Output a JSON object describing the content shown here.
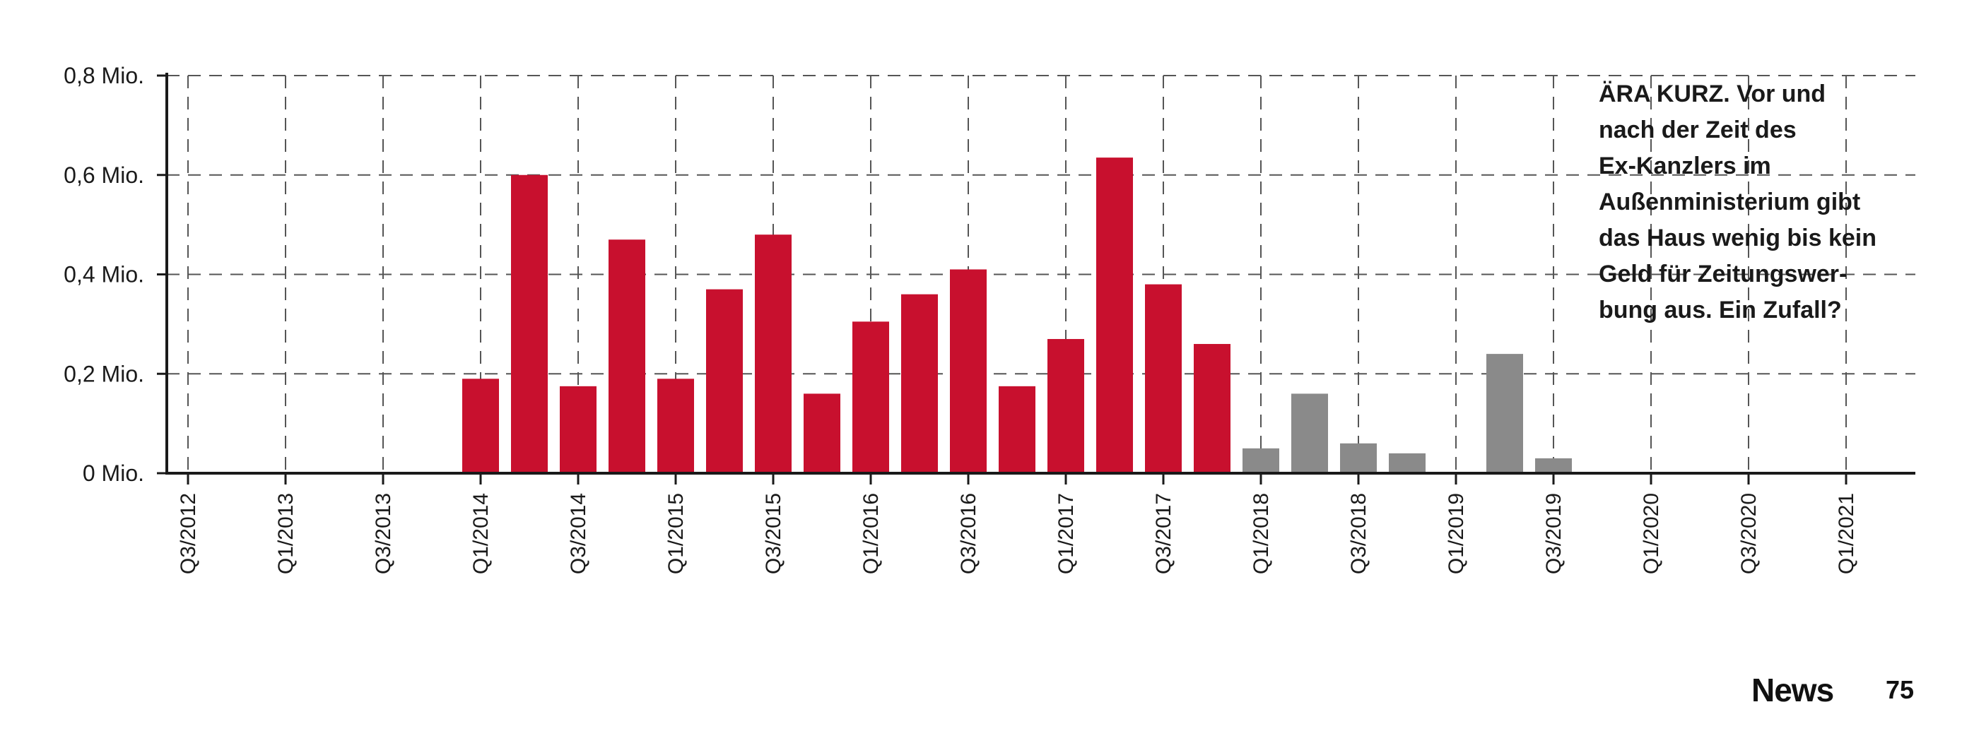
{
  "chart_data": {
    "type": "bar",
    "title": "",
    "xlabel": "",
    "ylabel": "",
    "ylim": [
      0,
      0.8
    ],
    "y_ticks": [
      {
        "value": 0,
        "label": "0 Mio."
      },
      {
        "value": 0.2,
        "label": "0,2 Mio."
      },
      {
        "value": 0.4,
        "label": "0,4 Mio."
      },
      {
        "value": 0.6,
        "label": "0,6 Mio."
      },
      {
        "value": 0.8,
        "label": "0,8 Mio."
      }
    ],
    "grid": true,
    "categories": [
      "Q3/2012",
      "Q4/2012",
      "Q1/2013",
      "Q2/2013",
      "Q3/2013",
      "Q4/2013",
      "Q1/2014",
      "Q2/2014",
      "Q3/2014",
      "Q4/2014",
      "Q1/2015",
      "Q2/2015",
      "Q3/2015",
      "Q4/2015",
      "Q1/2016",
      "Q2/2016",
      "Q3/2016",
      "Q4/2016",
      "Q1/2017",
      "Q2/2017",
      "Q3/2017",
      "Q4/2017",
      "Q1/2018",
      "Q2/2018",
      "Q3/2018",
      "Q4/2018",
      "Q1/2019",
      "Q2/2019",
      "Q3/2019",
      "Q4/2019",
      "Q1/2020",
      "Q2/2020",
      "Q3/2020",
      "Q4/2020",
      "Q1/2021",
      "Q2/2021"
    ],
    "tick_labels": [
      "Q3/2012",
      "Q1/2013",
      "Q3/2013",
      "Q1/2014",
      "Q3/2014",
      "Q1/2015",
      "Q3/2015",
      "Q1/2016",
      "Q3/2016",
      "Q1/2017",
      "Q3/2017",
      "Q1/2018",
      "Q3/2018",
      "Q1/2019",
      "Q3/2019",
      "Q1/2020",
      "Q3/2020",
      "Q1/2021"
    ],
    "values": [
      0,
      0,
      0,
      0,
      0,
      0,
      0.19,
      0.6,
      0.175,
      0.47,
      0.19,
      0.37,
      0.48,
      0.16,
      0.305,
      0.36,
      0.41,
      0.175,
      0.27,
      0.635,
      0.38,
      0.26,
      0.05,
      0.16,
      0.06,
      0.04,
      0,
      0.24,
      0.03,
      0,
      0,
      0,
      0,
      0,
      0,
      0
    ],
    "bar_colors": [
      "#d4a5a8",
      "#d4a5a8",
      "#d4a5a8",
      "#d4a5a8",
      "#d4a5a8",
      "#d4a5a8",
      "#c8102e",
      "#c8102e",
      "#c8102e",
      "#c8102e",
      "#c8102e",
      "#c8102e",
      "#c8102e",
      "#c8102e",
      "#c8102e",
      "#c8102e",
      "#c8102e",
      "#c8102e",
      "#c8102e",
      "#c8102e",
      "#c8102e",
      "#c8102e",
      "#8a8a8a",
      "#8a8a8a",
      "#8a8a8a",
      "#8a8a8a",
      "#8a8a8a",
      "#8a8a8a",
      "#8a8a8a",
      "#8a8a8a",
      "#8a8a8a",
      "#8a8a8a",
      "#8a8a8a",
      "#8a8a8a",
      "#8a8a8a",
      "#8a8a8a"
    ]
  },
  "colors": {
    "highlight": "#c8102e",
    "other": "#8a8a8a",
    "axis": "#1a1a1a",
    "grid": "#555555"
  },
  "caption": {
    "lines": [
      "ÄRA KURZ. Vor und",
      "nach der Zeit des",
      "Ex-Kanzlers im",
      "Außenministerium gibt",
      "das Haus wenig bis kein",
      "Geld für Zeitungswer-",
      "bung aus. Ein Zufall?"
    ]
  },
  "footer": {
    "brand": "News",
    "page_number": "75"
  }
}
